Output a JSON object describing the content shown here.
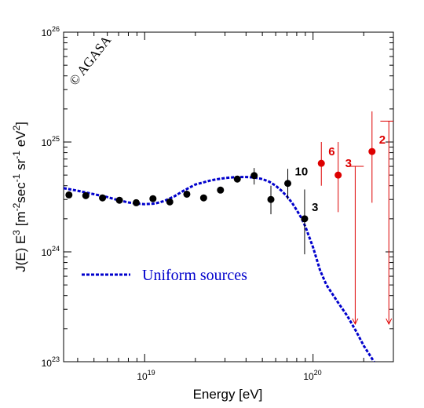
{
  "chart_data": {
    "type": "scatter",
    "title": "",
    "xlabel": "Energy [eV]",
    "ylabel_parts": [
      "J(E) E",
      "3",
      " [m",
      "-2",
      "sec",
      "-1",
      " sr",
      "-1",
      " eV",
      "2",
      "]"
    ],
    "x_scale": "log",
    "y_scale": "log",
    "xlim": [
      3.3e+18,
      3e+20
    ],
    "ylim": [
      1e+23,
      1e+26
    ],
    "x_ticks": [
      {
        "value": 1e+19,
        "base": "10",
        "exp": "19"
      },
      {
        "value": 1e+20,
        "base": "10",
        "exp": "20"
      }
    ],
    "y_ticks": [
      {
        "value": 1e+23,
        "base": "10",
        "exp": "23"
      },
      {
        "value": 1e+24,
        "base": "10",
        "exp": "24"
      },
      {
        "value": 1e+25,
        "base": "10",
        "exp": "25"
      },
      {
        "value": 1e+26,
        "base": "10",
        "exp": "26"
      }
    ],
    "watermark": "© AGASA",
    "legend": {
      "label": "Uniform sources",
      "placement": "center-left"
    },
    "colors": {
      "data_black": "#000000",
      "data_red": "#dd0000",
      "model_blue": "#0000cc"
    },
    "model_curve": {
      "name": "Uniform sources",
      "x": [
        3.3e+18,
        4e+18,
        5e+18,
        6e+18,
        7e+18,
        8e+18,
        9e+18,
        1e+19,
        1.15e+19,
        1.3e+19,
        1.5e+19,
        1.7e+19,
        2e+19,
        2.5e+19,
        3e+19,
        3.5e+19,
        4e+19,
        4.5e+19,
        5e+19,
        5.5e+19,
        6e+19,
        6.5e+19,
        7e+19,
        7.5e+19,
        8e+19,
        8.5e+19,
        9e+19,
        1e+20,
        1.1e+20,
        1.2e+20,
        1.4e+20,
        1.6e+20,
        1.8e+20,
        2e+20,
        2.3e+20
      ],
      "y": [
        3.8e+24,
        3.6e+24,
        3.35e+24,
        3.15e+24,
        2.95e+24,
        2.82e+24,
        2.75e+24,
        2.72e+24,
        2.75e+24,
        2.9e+24,
        3.2e+24,
        3.6e+24,
        4.1e+24,
        4.5e+24,
        4.7e+24,
        4.8e+24,
        4.8e+24,
        4.75e+24,
        4.6e+24,
        4.35e+24,
        4e+24,
        3.6e+24,
        3.2e+24,
        2.8e+24,
        2.4e+24,
        2.05e+24,
        1.7e+24,
        1.1e+24,
        6.8e+23,
        5e+23,
        3.5e+23,
        2.6e+23,
        1.9e+23,
        1.4e+23,
        1e+23
      ]
    },
    "series": [
      {
        "color": "black",
        "points": [
          {
            "x": 3.55e+18,
            "y": 3.3e+24
          },
          {
            "x": 4.47e+18,
            "y": 3.25e+24
          },
          {
            "x": 5.62e+18,
            "y": 3.1e+24
          },
          {
            "x": 7.08e+18,
            "y": 2.95e+24
          },
          {
            "x": 8.91e+18,
            "y": 2.8e+24
          },
          {
            "x": 1.12e+19,
            "y": 3.05e+24
          },
          {
            "x": 1.41e+19,
            "y": 2.85e+24
          },
          {
            "x": 1.78e+19,
            "y": 3.35e+24
          },
          {
            "x": 2.24e+19,
            "y": 3.1e+24
          },
          {
            "x": 2.82e+19,
            "y": 3.65e+24
          },
          {
            "x": 3.55e+19,
            "y": 4.6e+24
          },
          {
            "x": 4.47e+19,
            "y": 4.95e+24,
            "err_lo": 4.1e+24,
            "err_hi": 5.8e+24
          },
          {
            "x": 5.62e+19,
            "y": 3e+24,
            "err_lo": 2.2e+24,
            "err_hi": 4e+24
          },
          {
            "x": 7.08e+19,
            "y": 4.2e+24,
            "err_lo": 3e+24,
            "err_hi": 5.7e+24,
            "label": "10"
          },
          {
            "x": 8.91e+19,
            "y": 2e+24,
            "err_lo": 9.5e+23,
            "err_hi": 3.7e+24,
            "label": "3"
          }
        ]
      },
      {
        "color": "red",
        "points": [
          {
            "x": 1.12e+20,
            "y": 6.4e+24,
            "err_lo": 4e+24,
            "err_hi": 1e+25,
            "label": "6"
          },
          {
            "x": 1.41e+20,
            "y": 5e+24,
            "err_lo": 2.3e+24,
            "err_hi": 1e+25,
            "label": "3"
          },
          {
            "x": 2.24e+20,
            "y": 8.2e+24,
            "err_lo": 2.8e+24,
            "err_hi": 1.9e+25,
            "label": "2"
          }
        ],
        "upper_limits": [
          {
            "x": 1.78e+20,
            "y": 6e+24,
            "x_from": 1.58e+20,
            "x_to": 2e+20,
            "y_end": 2.2e+23
          },
          {
            "x": 2.82e+20,
            "y": 1.55e+25,
            "x_from": 2.51e+20,
            "x_to": 3e+20,
            "y_end": 2.2e+23
          }
        ]
      }
    ]
  }
}
